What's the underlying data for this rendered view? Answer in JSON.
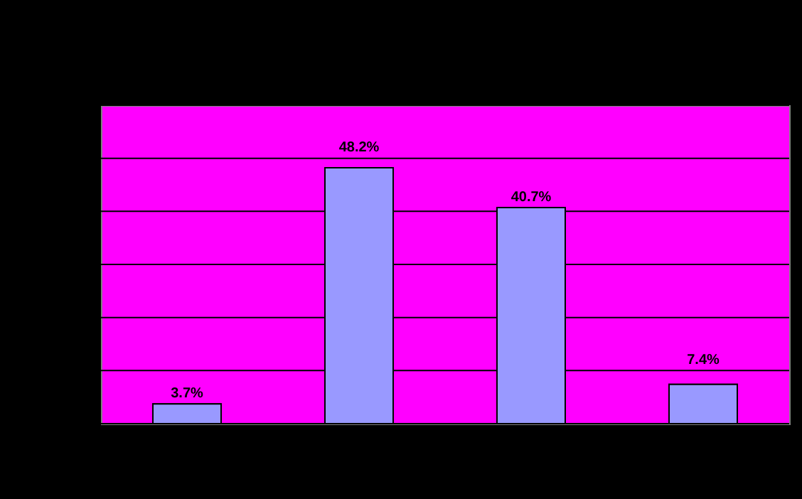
{
  "chart_data": {
    "type": "bar",
    "categories": [
      null,
      null,
      null,
      null
    ],
    "values": [
      3.7,
      48.2,
      40.7,
      7.4
    ],
    "color": "#9999ff",
    "value_labels": [
      "3.7%",
      "48.2%",
      "40.7%",
      "7.4%"
    ],
    "ylim": [
      0,
      60
    ],
    "yticks": [
      0,
      10,
      20,
      30,
      40,
      50,
      60
    ],
    "grid": "y",
    "tick_labels": false
  }
}
